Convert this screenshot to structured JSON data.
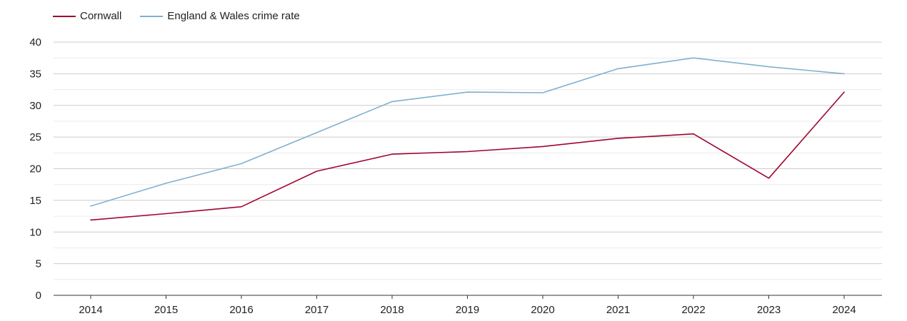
{
  "chart_data": {
    "type": "line",
    "title": "",
    "xlabel": "",
    "ylabel": "",
    "categories": [
      "2014",
      "2015",
      "2016",
      "2017",
      "2018",
      "2019",
      "2020",
      "2021",
      "2022",
      "2023",
      "2024"
    ],
    "ylim": [
      0,
      40
    ],
    "yticks": [
      "0",
      "5",
      "10",
      "15",
      "20",
      "25",
      "30",
      "35",
      "40"
    ],
    "grid": true,
    "legend_position": "top-left",
    "series": [
      {
        "name": "Cornwall",
        "color": "#a0052e",
        "values": [
          11.9,
          12.9,
          14.0,
          19.6,
          22.3,
          22.7,
          23.5,
          24.8,
          25.5,
          18.5,
          32.1
        ]
      },
      {
        "name": "England & Wales crime rate",
        "color": "#7fb0d0",
        "values": [
          14.1,
          17.7,
          20.8,
          25.7,
          30.6,
          32.1,
          32.0,
          35.8,
          37.5,
          36.1,
          35.0
        ]
      }
    ]
  }
}
